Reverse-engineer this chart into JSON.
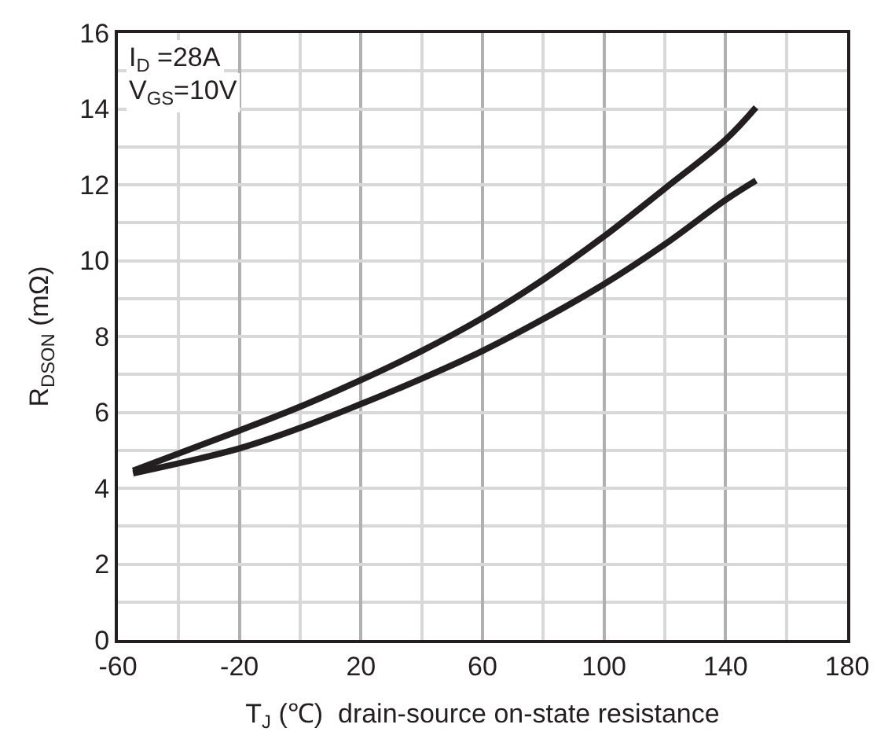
{
  "chart_data": {
    "type": "line",
    "xlabel": "T$_{J}$ (℃)  drain-source on-state resistance",
    "ylabel": "R$_{DSON}$ (mΩ)",
    "x": [
      -55,
      -20,
      0,
      20,
      40,
      60,
      80,
      100,
      120,
      140,
      150
    ],
    "series": [
      {
        "color": "#231f20",
        "values": [
          4.46,
          5.52,
          6.15,
          6.85,
          7.62,
          8.49,
          9.5,
          10.64,
          11.9,
          13.19,
          14.04
        ]
      },
      {
        "color": "#231f20",
        "values": [
          4.39,
          5.05,
          5.59,
          6.22,
          6.89,
          7.62,
          8.46,
          9.38,
          10.43,
          11.6,
          12.11
        ]
      }
    ],
    "annotations": [
      "I$_{D}$ =28A",
      "V$_{GS}$=10V"
    ],
    "xlim": [
      -60,
      180
    ],
    "xticks": [
      -60,
      -20,
      20,
      60,
      100,
      140,
      180
    ],
    "ylim": [
      0,
      16
    ],
    "yticks": [
      0,
      2,
      4,
      6,
      8,
      10,
      12,
      14,
      16
    ],
    "grid": true,
    "marker": "none",
    "line_style": "solid"
  }
}
